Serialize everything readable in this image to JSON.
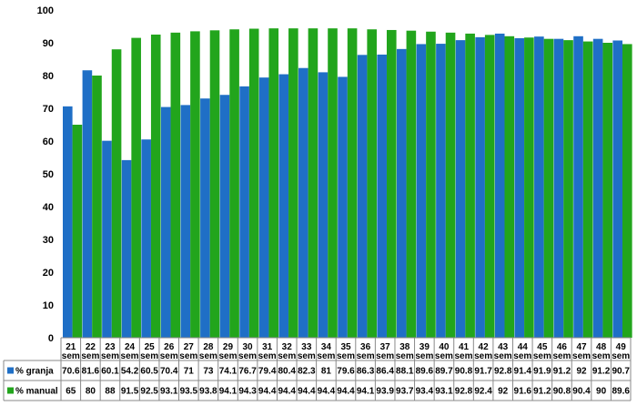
{
  "chart_data": {
    "type": "bar",
    "categories": [
      {
        "num": "21",
        "unit": "sem"
      },
      {
        "num": "22",
        "unit": "sem"
      },
      {
        "num": "23",
        "unit": "sem"
      },
      {
        "num": "24",
        "unit": "sem"
      },
      {
        "num": "25",
        "unit": "sem"
      },
      {
        "num": "26",
        "unit": "sem"
      },
      {
        "num": "27",
        "unit": "sem"
      },
      {
        "num": "28",
        "unit": "sem"
      },
      {
        "num": "29",
        "unit": "sem"
      },
      {
        "num": "30",
        "unit": "sem"
      },
      {
        "num": "31",
        "unit": "sem"
      },
      {
        "num": "32",
        "unit": "sem"
      },
      {
        "num": "33",
        "unit": "sem"
      },
      {
        "num": "34",
        "unit": "sem"
      },
      {
        "num": "35",
        "unit": "sem"
      },
      {
        "num": "36",
        "unit": "sem"
      },
      {
        "num": "37",
        "unit": "sem"
      },
      {
        "num": "38",
        "unit": "sem"
      },
      {
        "num": "39",
        "unit": "sem"
      },
      {
        "num": "40",
        "unit": "sem"
      },
      {
        "num": "41",
        "unit": "sem"
      },
      {
        "num": "42",
        "unit": "sem"
      },
      {
        "num": "43",
        "unit": "sem"
      },
      {
        "num": "44",
        "unit": "sem"
      },
      {
        "num": "45",
        "unit": "sem"
      },
      {
        "num": "46",
        "unit": "sem"
      },
      {
        "num": "47",
        "unit": "sem"
      },
      {
        "num": "48",
        "unit": "sem"
      },
      {
        "num": "49",
        "unit": "sem"
      }
    ],
    "series": [
      {
        "name": "% granja",
        "color": "#1f6fc6",
        "values": [
          70.6,
          81.6,
          60.1,
          54.2,
          60.5,
          70.4,
          71,
          73,
          74.1,
          76.7,
          79.4,
          80.4,
          82.3,
          81,
          79.6,
          86.3,
          86.4,
          88.1,
          89.6,
          89.7,
          90.8,
          91.7,
          92.8,
          91.4,
          91.9,
          91.2,
          92,
          91.2,
          90.7
        ],
        "labels": [
          "70.6",
          "81.6",
          "60.1",
          "54.2",
          "60.5",
          "70.4",
          "71",
          "73",
          "74.1",
          "76.7",
          "79.4",
          "80.4",
          "82.3",
          "81",
          "79.6",
          "86.3",
          "86.4",
          "88.1",
          "89.6",
          "89.7",
          "90.8",
          "91.7",
          "92.8",
          "91.4",
          "91.9",
          "91.2",
          "92",
          "91.2",
          "90.7"
        ]
      },
      {
        "name": "% manual",
        "color": "#22a51c",
        "values": [
          65,
          80,
          88,
          91.5,
          92.5,
          93.1,
          93.5,
          93.8,
          94.1,
          94.3,
          94.4,
          94.4,
          94.4,
          94.4,
          94.4,
          94.1,
          93.9,
          93.7,
          93.4,
          93.1,
          92.8,
          92.4,
          92,
          91.6,
          91.2,
          90.8,
          90.4,
          90,
          89.6
        ],
        "labels": [
          "65",
          "80",
          "88",
          "91.5",
          "92.5",
          "93.1",
          "93.5",
          "93.8",
          "94.1",
          "94.3",
          "94.4",
          "94.4",
          "94.4",
          "94.4",
          "94.4",
          "94.1",
          "93.9",
          "93.7",
          "93.4",
          "93.1",
          "92.8",
          "92.4",
          "92",
          "91.6",
          "91.2",
          "90.8",
          "90.4",
          "90",
          "89.6"
        ]
      }
    ],
    "yticks": [
      "0",
      "10",
      "20",
      "30",
      "40",
      "50",
      "60",
      "70",
      "80",
      "90",
      "100"
    ],
    "ylim": [
      0,
      100
    ],
    "grid": false,
    "legend": "table-below"
  }
}
